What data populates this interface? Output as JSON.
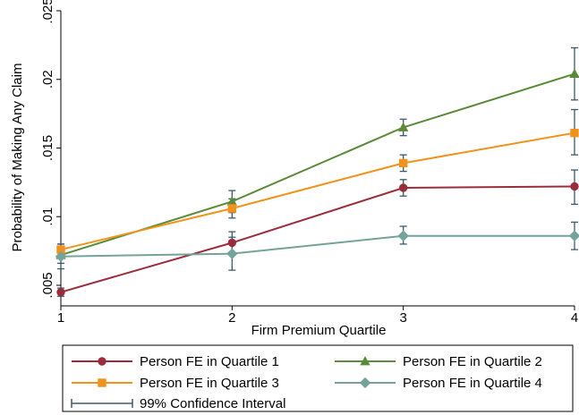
{
  "chart_data": {
    "type": "line",
    "title": "",
    "xlabel": "Firm Premium Quartile",
    "ylabel": "Probability of Making Any Claim",
    "x": [
      1,
      2,
      3,
      4
    ],
    "x_ticks": [
      "1",
      "2",
      "3",
      "4"
    ],
    "ylim": [
      0.0035,
      0.025
    ],
    "y_ticks": [
      0.005,
      0.01,
      0.015,
      0.02,
      0.025
    ],
    "y_tick_labels": [
      ".005",
      ".01",
      ".015",
      ".02",
      ".025"
    ],
    "grid": false,
    "legend_position": "bottom",
    "series": [
      {
        "name": "Person FE in Quartile 1",
        "color": "#9b2d3a",
        "marker": "circle",
        "values": [
          0.0045,
          0.0081,
          0.0121,
          0.0122
        ],
        "ci_low": [
          0.0042,
          0.0073,
          0.0115,
          0.0109
        ],
        "ci_high": [
          0.0048,
          0.0089,
          0.0127,
          0.0134
        ]
      },
      {
        "name": "Person FE in Quartile 2",
        "color": "#5b8a3a",
        "marker": "triangle",
        "values": [
          0.0072,
          0.0111,
          0.0165,
          0.0204
        ],
        "ci_low": [
          0.0066,
          0.0103,
          0.0159,
          0.0185
        ],
        "ci_high": [
          0.0078,
          0.0119,
          0.0171,
          0.0223
        ]
      },
      {
        "name": "Person FE in Quartile 3",
        "color": "#f0921c",
        "marker": "square",
        "values": [
          0.0076,
          0.0106,
          0.0139,
          0.0161
        ],
        "ci_low": [
          0.0072,
          0.0099,
          0.0133,
          0.0145
        ],
        "ci_high": [
          0.008,
          0.0113,
          0.0145,
          0.0178
        ]
      },
      {
        "name": "Person FE in Quartile 4",
        "color": "#73a39a",
        "marker": "diamond",
        "values": [
          0.0071,
          0.0073,
          0.0086,
          0.0086
        ],
        "ci_low": [
          0.0062,
          0.0061,
          0.008,
          0.0076
        ],
        "ci_high": [
          0.008,
          0.0085,
          0.0093,
          0.0096
        ]
      }
    ],
    "ci_legend": {
      "label": "99% Confidence Interval",
      "color": "#3b5a6e"
    }
  }
}
